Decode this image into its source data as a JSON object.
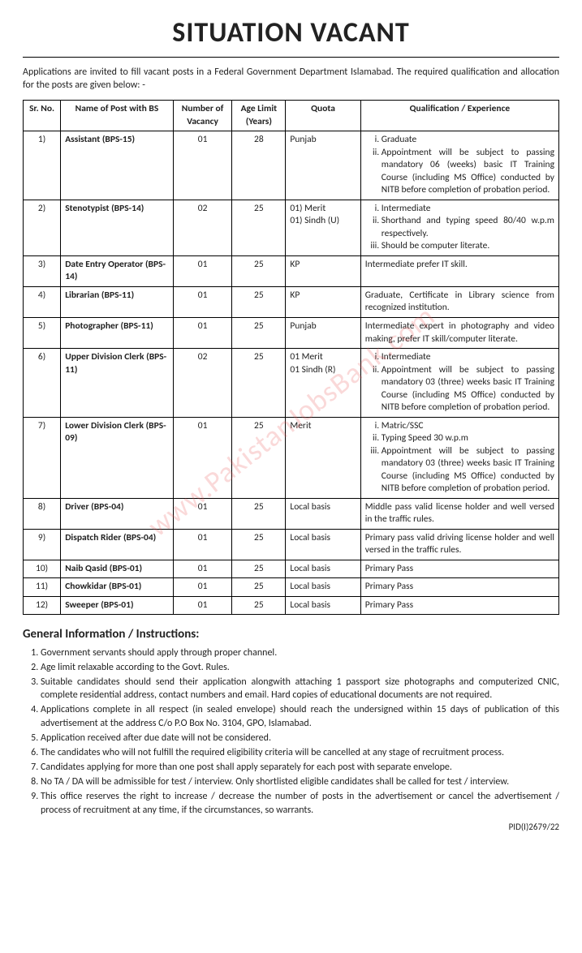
{
  "title": "SITUATION VACANT",
  "intro": "Applications are invited to fill vacant posts in a Federal Government Department Islamabad. The required qualification and allocation for the posts are given below: -",
  "watermark": "www.PakistanJobsBank.com",
  "table": {
    "columns": [
      "Sr. No.",
      "Name of Post with BS",
      "Number of Vacancy",
      "Age Limit (Years)",
      "Quota",
      "Qualification / Experience"
    ],
    "rows": [
      {
        "sr": "1)",
        "post": "Assistant (BPS-15)",
        "vac": "01",
        "age": "28",
        "quota": "Punjab",
        "qual_list": [
          "Graduate",
          "Appointment will be subject to passing mandatory 06 (weeks) basic IT Training Course (including MS Office) conducted by NITB before completion of probation period."
        ]
      },
      {
        "sr": "2)",
        "post": "Stenotypist (BPS-14)",
        "vac": "02",
        "age": "25",
        "quota_list": [
          "01)   Merit",
          "01)   Sindh (U)"
        ],
        "qual_list": [
          "Intermediate",
          "Shorthand and typing speed 80/40 w.p.m respectively.",
          "Should be computer literate."
        ]
      },
      {
        "sr": "3)",
        "post": "Date Entry Operator (BPS-14)",
        "vac": "01",
        "age": "25",
        "quota": "KP",
        "qual_text": "Intermediate prefer IT skill."
      },
      {
        "sr": "4)",
        "post": "Librarian (BPS-11)",
        "vac": "01",
        "age": "25",
        "quota": "KP",
        "qual_text": "Graduate, Certificate in Library science from recognized institution."
      },
      {
        "sr": "5)",
        "post": "Photographer (BPS-11)",
        "vac": "01",
        "age": "25",
        "quota": "Punjab",
        "qual_text": "Intermediate expert in photography and video making, prefer IT skill/computer literate."
      },
      {
        "sr": "6)",
        "post": "Upper Division Clerk (BPS-11)",
        "vac": "02",
        "age": "25",
        "quota_list": [
          "01 Merit",
          "01 Sindh (R)"
        ],
        "qual_list": [
          "Intermediate",
          "Appointment will be subject to passing mandatory 03 (three) weeks basic IT Training Course (including MS Office) conducted by NITB before completion of probation period."
        ]
      },
      {
        "sr": "7)",
        "post": "Lower Division Clerk (BPS-09)",
        "vac": "01",
        "age": "25",
        "quota": "Merit",
        "qual_list": [
          "Matric/SSC",
          "Typing Speed 30 w.p.m",
          "Appointment will be subject to passing mandatory 03 (three) weeks basic IT Training Course (including MS Office) conducted by NITB before completion of probation period."
        ]
      },
      {
        "sr": "8)",
        "post": "Driver (BPS-04)",
        "vac": "01",
        "age": "25",
        "quota": "Local basis",
        "qual_text": "Middle pass valid license holder and well versed in the traffic rules."
      },
      {
        "sr": "9)",
        "post": "Dispatch Rider (BPS-04)",
        "vac": "01",
        "age": "25",
        "quota": "Local basis",
        "qual_text": "Primary pass valid driving license holder and well versed in the traffic rules."
      },
      {
        "sr": "10)",
        "post": "Naib Qasid (BPS-01)",
        "vac": "01",
        "age": "25",
        "quota": "Local basis",
        "qual_text": "Primary Pass"
      },
      {
        "sr": "11)",
        "post": "Chowkidar (BPS-01)",
        "vac": "01",
        "age": "25",
        "quota": "Local basis",
        "qual_text": "Primary Pass"
      },
      {
        "sr": "12)",
        "post": "Sweeper (BPS-01)",
        "vac": "01",
        "age": "25",
        "quota": "Local basis",
        "qual_text": "Primary Pass"
      }
    ]
  },
  "instructions_heading": "General Information / Instructions:",
  "instructions": [
    "Government servants should apply through proper channel.",
    "Age limit relaxable according to the Govt. Rules.",
    "Suitable candidates should send their application alongwith attaching 1 passport size photographs and computerized CNIC, complete residential address, contact numbers and email. Hard copies of educational documents are not required.",
    "Applications complete in all respect (in sealed envelope) should reach the undersigned within 15 days of publication of this advertisement at the address C/o P.O Box No. 3104, GPO, Islamabad.",
    "Application received after due date will not be considered.",
    "The candidates who will not fulfill the required eligibility criteria will be cancelled at any stage of recruitment process.",
    "Candidates applying for more than one post shall apply separately for each post with separate envelope.",
    "No TA / DA will be admissible for test / interview. Only shortlisted eligible candidates shall be called for test / interview.",
    "This office  reserves the right to increase / decrease the number of posts in the advertisement or cancel the advertisement / process of recruitment at any time, if the circumstances, so warrants."
  ],
  "pid": "PID(I)2679/22"
}
